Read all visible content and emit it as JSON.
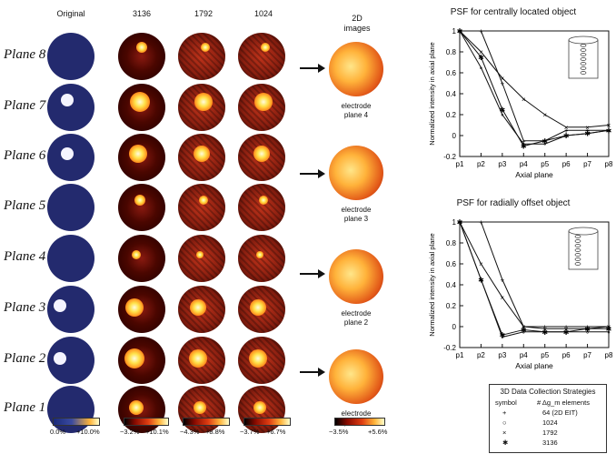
{
  "column_headers": [
    "Original",
    "3136",
    "1792",
    "1024"
  ],
  "plane_labels": [
    "Plane 8",
    "Plane 7",
    "Plane 6",
    "Plane 5",
    "Plane 4",
    "Plane 3",
    "Plane 2",
    "Plane 1"
  ],
  "images_2d": {
    "header_line1": "2D",
    "header_line2": "images",
    "captions": [
      {
        "line1": "electrode",
        "line2": "plane 4"
      },
      {
        "line1": "electrode",
        "line2": "plane 3"
      },
      {
        "line1": "electrode",
        "line2": "plane 2"
      },
      {
        "line1": "electrode",
        "line2": "plane 1"
      }
    ],
    "colorbar": {
      "min": "−3.5%",
      "max": "+5.6%"
    }
  },
  "colorbars": [
    {
      "min": "0.0%",
      "max": "+10.0%"
    },
    {
      "min": "−3.2%",
      "max": "+10.1%"
    },
    {
      "min": "−4.3%",
      "max": "+8.8%"
    },
    {
      "min": "−3.7%",
      "max": "+6.7%"
    }
  ],
  "chart_data": [
    {
      "type": "line",
      "title": "PSF for centrally located object",
      "xlabel": "Axial plane",
      "ylabel": "Normalized intensity in axial plane",
      "categories": [
        "p1",
        "p2",
        "p3",
        "p4",
        "p5",
        "p6",
        "p7",
        "p8"
      ],
      "ylim": [
        -0.2,
        1
      ],
      "yticks": [
        "1",
        "0.8",
        "0.6",
        "0.4",
        "0.2",
        "0",
        "-0.2"
      ],
      "series": [
        {
          "name": "64 (2D EIT)",
          "marker": "+",
          "values": [
            1,
            1,
            0.5,
            -0.05,
            -0.05,
            0.05,
            0.05,
            0.05
          ]
        },
        {
          "name": "1024",
          "marker": "o",
          "values": [
            1,
            0.65,
            0.2,
            -0.08,
            -0.08,
            0,
            0.02,
            0.05
          ]
        },
        {
          "name": "1792",
          "marker": "x",
          "values": [
            1,
            0.8,
            0.55,
            0.35,
            0.2,
            0.08,
            0.08,
            0.1
          ]
        },
        {
          "name": "3136",
          "marker": "*",
          "values": [
            1,
            0.75,
            0.25,
            -0.1,
            -0.05,
            0,
            0.02,
            0.05
          ]
        }
      ]
    },
    {
      "type": "line",
      "title": "PSF for radially offset object",
      "xlabel": "Axial plane",
      "ylabel": "Normalized intensity in axial plane",
      "categories": [
        "p1",
        "p2",
        "p3",
        "p4",
        "p5",
        "p6",
        "p7",
        "p8"
      ],
      "ylim": [
        -0.2,
        1
      ],
      "yticks": [
        "1",
        "0.8",
        "0.6",
        "0.4",
        "0.2",
        "0",
        "-0.2"
      ],
      "series": [
        {
          "name": "64 (2D EIT)",
          "marker": "+",
          "values": [
            1,
            1,
            0.45,
            0,
            0,
            0,
            0,
            0
          ]
        },
        {
          "name": "1024",
          "marker": "o",
          "values": [
            1,
            0.45,
            -0.1,
            -0.05,
            -0.05,
            -0.05,
            -0.05,
            -0.05
          ]
        },
        {
          "name": "1792",
          "marker": "x",
          "values": [
            1,
            0.6,
            0.28,
            0,
            -0.02,
            -0.02,
            -0.02,
            0
          ]
        },
        {
          "name": "3136",
          "marker": "*",
          "values": [
            1,
            0.45,
            -0.08,
            -0.03,
            -0.05,
            -0.05,
            -0.02,
            -0.02
          ]
        }
      ]
    }
  ],
  "legend": {
    "title": "3D Data Collection Strategies",
    "col1": "symbol",
    "col2": "# Δg_m elements",
    "rows": [
      {
        "symbol": "+",
        "label": "64  (2D EIT)"
      },
      {
        "symbol": "○",
        "label": "1024"
      },
      {
        "symbol": "×",
        "label": "1792"
      },
      {
        "symbol": "✱",
        "label": "3136"
      }
    ]
  }
}
